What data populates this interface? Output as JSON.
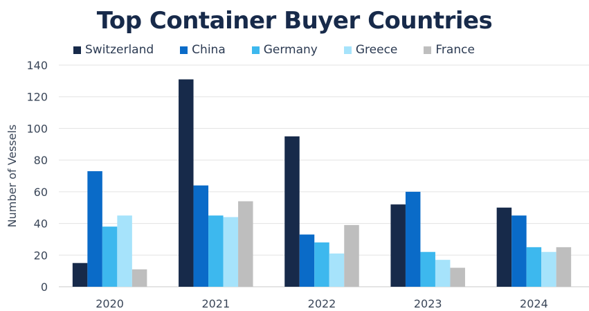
{
  "chart_data": {
    "type": "bar",
    "title": "Top Container Buyer Countries",
    "ylabel": "Number of Vessels",
    "xlabel": "",
    "ylim": [
      0,
      140
    ],
    "yticks": [
      0,
      20,
      40,
      60,
      80,
      100,
      120,
      140
    ],
    "categories": [
      "2020",
      "2021",
      "2022",
      "2023",
      "2024"
    ],
    "grid": true,
    "legend_position": "top",
    "series": [
      {
        "name": "Switzerland",
        "color": "#172a4a",
        "values": [
          15,
          131,
          95,
          52,
          50
        ]
      },
      {
        "name": "China",
        "color": "#0a6bc8",
        "values": [
          73,
          64,
          33,
          60,
          45
        ]
      },
      {
        "name": "Germany",
        "color": "#3db8ee",
        "values": [
          38,
          45,
          28,
          22,
          25
        ]
      },
      {
        "name": "Greece",
        "color": "#a6e3fb",
        "values": [
          45,
          44,
          21,
          17,
          22
        ]
      },
      {
        "name": "France",
        "color": "#bebebe",
        "values": [
          11,
          54,
          39,
          12,
          25
        ]
      }
    ]
  }
}
